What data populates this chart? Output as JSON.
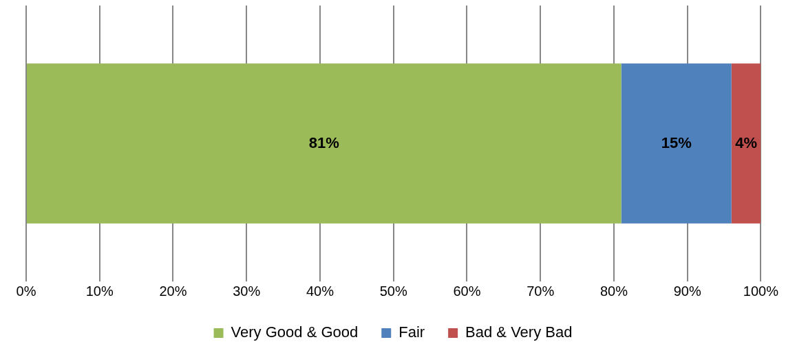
{
  "chart_data": {
    "type": "bar",
    "orientation": "horizontal",
    "stacked": true,
    "categories": [
      null
    ],
    "series": [
      {
        "name": "Very Good & Good",
        "color": "#9bbb59",
        "values": [
          81
        ],
        "value_labels": [
          "81%"
        ]
      },
      {
        "name": "Fair",
        "color": "#4f81bd",
        "values": [
          15
        ],
        "value_labels": [
          "15%"
        ]
      },
      {
        "name": "Bad & Very Bad",
        "color": "#c0504d",
        "values": [
          4
        ],
        "value_labels": [
          "4%"
        ]
      }
    ],
    "xlim": [
      0,
      100
    ],
    "xticks": [
      {
        "value": 0,
        "label": "0%"
      },
      {
        "value": 10,
        "label": "10%"
      },
      {
        "value": 20,
        "label": "20%"
      },
      {
        "value": 30,
        "label": "30%"
      },
      {
        "value": 40,
        "label": "40%"
      },
      {
        "value": 50,
        "label": "50%"
      },
      {
        "value": 60,
        "label": "60%"
      },
      {
        "value": 70,
        "label": "70%"
      },
      {
        "value": 80,
        "label": "80%"
      },
      {
        "value": 90,
        "label": "90%"
      },
      {
        "value": 100,
        "label": "100%"
      }
    ],
    "grid": "x",
    "legend": "bottom"
  }
}
